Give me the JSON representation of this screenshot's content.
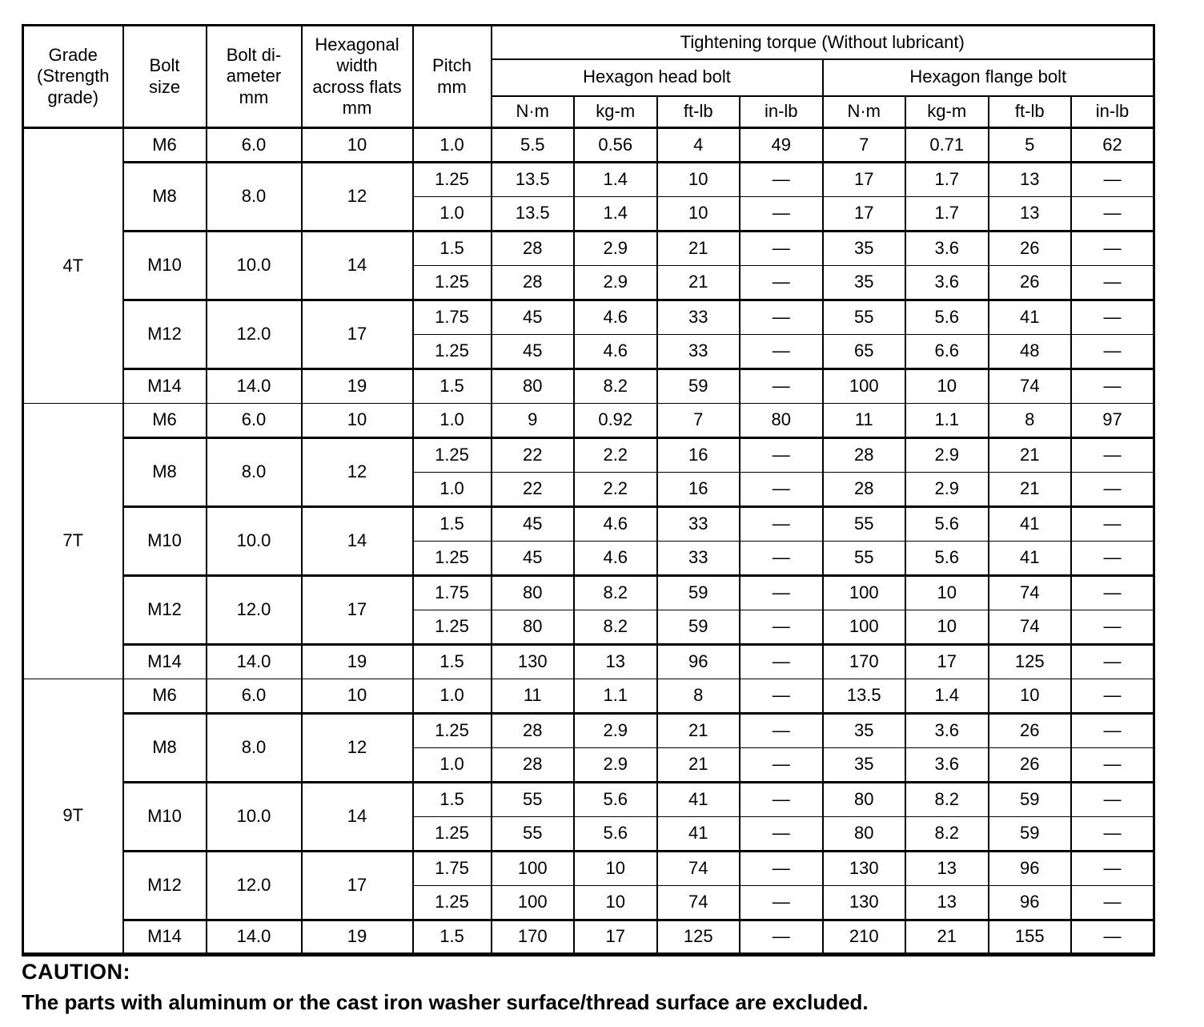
{
  "colors": {
    "text": "#000000",
    "background": "#ffffff",
    "border": "#000000"
  },
  "table": {
    "col_headers": {
      "grade": "Grade\n(Strength\ngrade)",
      "bolt_size": "Bolt\nsize",
      "bolt_diameter": "Bolt di-\nameter\nmm",
      "hex_width": "Hexagonal\nwidth\nacross flats\nmm",
      "pitch": "Pitch\nmm"
    },
    "torque_title": "Tightening torque (Without lubricant)",
    "head_bolt_label": "Hexagon head bolt",
    "flange_bolt_label": "Hexagon flange bolt",
    "units": [
      "N·m",
      "kg-m",
      "ft-lb",
      "in-lb"
    ],
    "sections": [
      {
        "grade": "4T",
        "groups": [
          {
            "size": "M6",
            "diameter": "6.0",
            "width": "10",
            "rows": [
              {
                "pitch": "1.0",
                "head": [
                  "5.5",
                  "0.56",
                  "4",
                  "49"
                ],
                "flange": [
                  "7",
                  "0.71",
                  "5",
                  "62"
                ]
              }
            ]
          },
          {
            "size": "M8",
            "diameter": "8.0",
            "width": "12",
            "rows": [
              {
                "pitch": "1.25",
                "head": [
                  "13.5",
                  "1.4",
                  "10",
                  "—"
                ],
                "flange": [
                  "17",
                  "1.7",
                  "13",
                  "—"
                ]
              },
              {
                "pitch": "1.0",
                "head": [
                  "13.5",
                  "1.4",
                  "10",
                  "—"
                ],
                "flange": [
                  "17",
                  "1.7",
                  "13",
                  "—"
                ]
              }
            ]
          },
          {
            "size": "M10",
            "diameter": "10.0",
            "width": "14",
            "rows": [
              {
                "pitch": "1.5",
                "head": [
                  "28",
                  "2.9",
                  "21",
                  "—"
                ],
                "flange": [
                  "35",
                  "3.6",
                  "26",
                  "—"
                ]
              },
              {
                "pitch": "1.25",
                "head": [
                  "28",
                  "2.9",
                  "21",
                  "—"
                ],
                "flange": [
                  "35",
                  "3.6",
                  "26",
                  "—"
                ]
              }
            ]
          },
          {
            "size": "M12",
            "diameter": "12.0",
            "width": "17",
            "rows": [
              {
                "pitch": "1.75",
                "head": [
                  "45",
                  "4.6",
                  "33",
                  "—"
                ],
                "flange": [
                  "55",
                  "5.6",
                  "41",
                  "—"
                ]
              },
              {
                "pitch": "1.25",
                "head": [
                  "45",
                  "4.6",
                  "33",
                  "—"
                ],
                "flange": [
                  "65",
                  "6.6",
                  "48",
                  "—"
                ]
              }
            ]
          },
          {
            "size": "M14",
            "diameter": "14.0",
            "width": "19",
            "rows": [
              {
                "pitch": "1.5",
                "head": [
                  "80",
                  "8.2",
                  "59",
                  "—"
                ],
                "flange": [
                  "100",
                  "10",
                  "74",
                  "—"
                ]
              }
            ]
          }
        ]
      },
      {
        "grade": "7T",
        "groups": [
          {
            "size": "M6",
            "diameter": "6.0",
            "width": "10",
            "rows": [
              {
                "pitch": "1.0",
                "head": [
                  "9",
                  "0.92",
                  "7",
                  "80"
                ],
                "flange": [
                  "11",
                  "1.1",
                  "8",
                  "97"
                ]
              }
            ]
          },
          {
            "size": "M8",
            "diameter": "8.0",
            "width": "12",
            "rows": [
              {
                "pitch": "1.25",
                "head": [
                  "22",
                  "2.2",
                  "16",
                  "—"
                ],
                "flange": [
                  "28",
                  "2.9",
                  "21",
                  "—"
                ]
              },
              {
                "pitch": "1.0",
                "head": [
                  "22",
                  "2.2",
                  "16",
                  "—"
                ],
                "flange": [
                  "28",
                  "2.9",
                  "21",
                  "—"
                ]
              }
            ]
          },
          {
            "size": "M10",
            "diameter": "10.0",
            "width": "14",
            "rows": [
              {
                "pitch": "1.5",
                "head": [
                  "45",
                  "4.6",
                  "33",
                  "—"
                ],
                "flange": [
                  "55",
                  "5.6",
                  "41",
                  "—"
                ]
              },
              {
                "pitch": "1.25",
                "head": [
                  "45",
                  "4.6",
                  "33",
                  "—"
                ],
                "flange": [
                  "55",
                  "5.6",
                  "41",
                  "—"
                ]
              }
            ]
          },
          {
            "size": "M12",
            "diameter": "12.0",
            "width": "17",
            "rows": [
              {
                "pitch": "1.75",
                "head": [
                  "80",
                  "8.2",
                  "59",
                  "—"
                ],
                "flange": [
                  "100",
                  "10",
                  "74",
                  "—"
                ]
              },
              {
                "pitch": "1.25",
                "head": [
                  "80",
                  "8.2",
                  "59",
                  "—"
                ],
                "flange": [
                  "100",
                  "10",
                  "74",
                  "—"
                ]
              }
            ]
          },
          {
            "size": "M14",
            "diameter": "14.0",
            "width": "19",
            "rows": [
              {
                "pitch": "1.5",
                "head": [
                  "130",
                  "13",
                  "96",
                  "—"
                ],
                "flange": [
                  "170",
                  "17",
                  "125",
                  "—"
                ]
              }
            ]
          }
        ]
      },
      {
        "grade": "9T",
        "groups": [
          {
            "size": "M6",
            "diameter": "6.0",
            "width": "10",
            "rows": [
              {
                "pitch": "1.0",
                "head": [
                  "11",
                  "1.1",
                  "8",
                  "—"
                ],
                "flange": [
                  "13.5",
                  "1.4",
                  "10",
                  "—"
                ]
              }
            ]
          },
          {
            "size": "M8",
            "diameter": "8.0",
            "width": "12",
            "rows": [
              {
                "pitch": "1.25",
                "head": [
                  "28",
                  "2.9",
                  "21",
                  "—"
                ],
                "flange": [
                  "35",
                  "3.6",
                  "26",
                  "—"
                ]
              },
              {
                "pitch": "1.0",
                "head": [
                  "28",
                  "2.9",
                  "21",
                  "—"
                ],
                "flange": [
                  "35",
                  "3.6",
                  "26",
                  "—"
                ]
              }
            ]
          },
          {
            "size": "M10",
            "diameter": "10.0",
            "width": "14",
            "rows": [
              {
                "pitch": "1.5",
                "head": [
                  "55",
                  "5.6",
                  "41",
                  "—"
                ],
                "flange": [
                  "80",
                  "8.2",
                  "59",
                  "—"
                ]
              },
              {
                "pitch": "1.25",
                "head": [
                  "55",
                  "5.6",
                  "41",
                  "—"
                ],
                "flange": [
                  "80",
                  "8.2",
                  "59",
                  "—"
                ]
              }
            ]
          },
          {
            "size": "M12",
            "diameter": "12.0",
            "width": "17",
            "rows": [
              {
                "pitch": "1.75",
                "head": [
                  "100",
                  "10",
                  "74",
                  "—"
                ],
                "flange": [
                  "130",
                  "13",
                  "96",
                  "—"
                ]
              },
              {
                "pitch": "1.25",
                "head": [
                  "100",
                  "10",
                  "74",
                  "—"
                ],
                "flange": [
                  "130",
                  "13",
                  "96",
                  "—"
                ]
              }
            ]
          },
          {
            "size": "M14",
            "diameter": "14.0",
            "width": "19",
            "rows": [
              {
                "pitch": "1.5",
                "head": [
                  "170",
                  "17",
                  "125",
                  "—"
                ],
                "flange": [
                  "210",
                  "21",
                  "155",
                  "—"
                ]
              }
            ]
          }
        ]
      }
    ]
  },
  "caution": {
    "title": "CAUTION:",
    "text": "The parts with aluminum or the cast iron washer surface/thread surface are excluded."
  }
}
